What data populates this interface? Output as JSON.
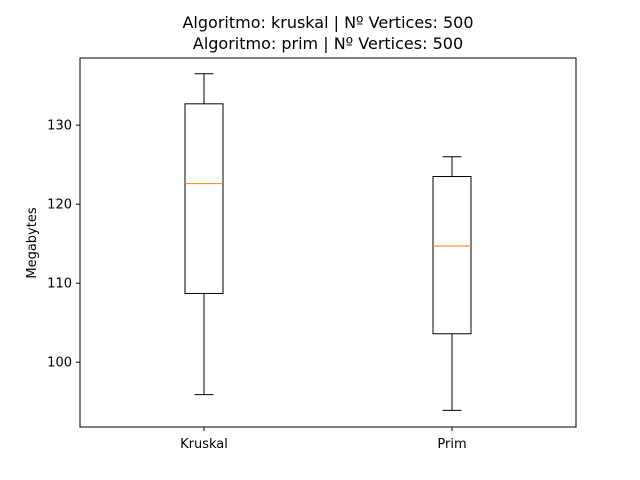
{
  "chart_data": {
    "type": "boxplot",
    "title_lines": [
      "Algoritmo: kruskal | Nº Vertices: 500",
      "Algoritmo: prim | Nº Vertices: 500"
    ],
    "xlabel": "",
    "ylabel": "Megabytes",
    "ylim": [
      91.8,
      138.5
    ],
    "yticks": [
      100,
      110,
      120,
      130
    ],
    "categories": [
      "Kruskal",
      "Prim"
    ],
    "boxes": [
      {
        "label": "Kruskal",
        "whisker_low": 95.9,
        "q1": 108.7,
        "median": 122.6,
        "q3": 132.7,
        "whisker_high": 136.5
      },
      {
        "label": "Prim",
        "whisker_low": 93.9,
        "q1": 103.6,
        "median": 114.7,
        "q3": 123.5,
        "whisker_high": 126.0
      }
    ],
    "colors": {
      "box": "#000000",
      "median": "#ff7f0e"
    },
    "grid": false,
    "legend": "none"
  }
}
